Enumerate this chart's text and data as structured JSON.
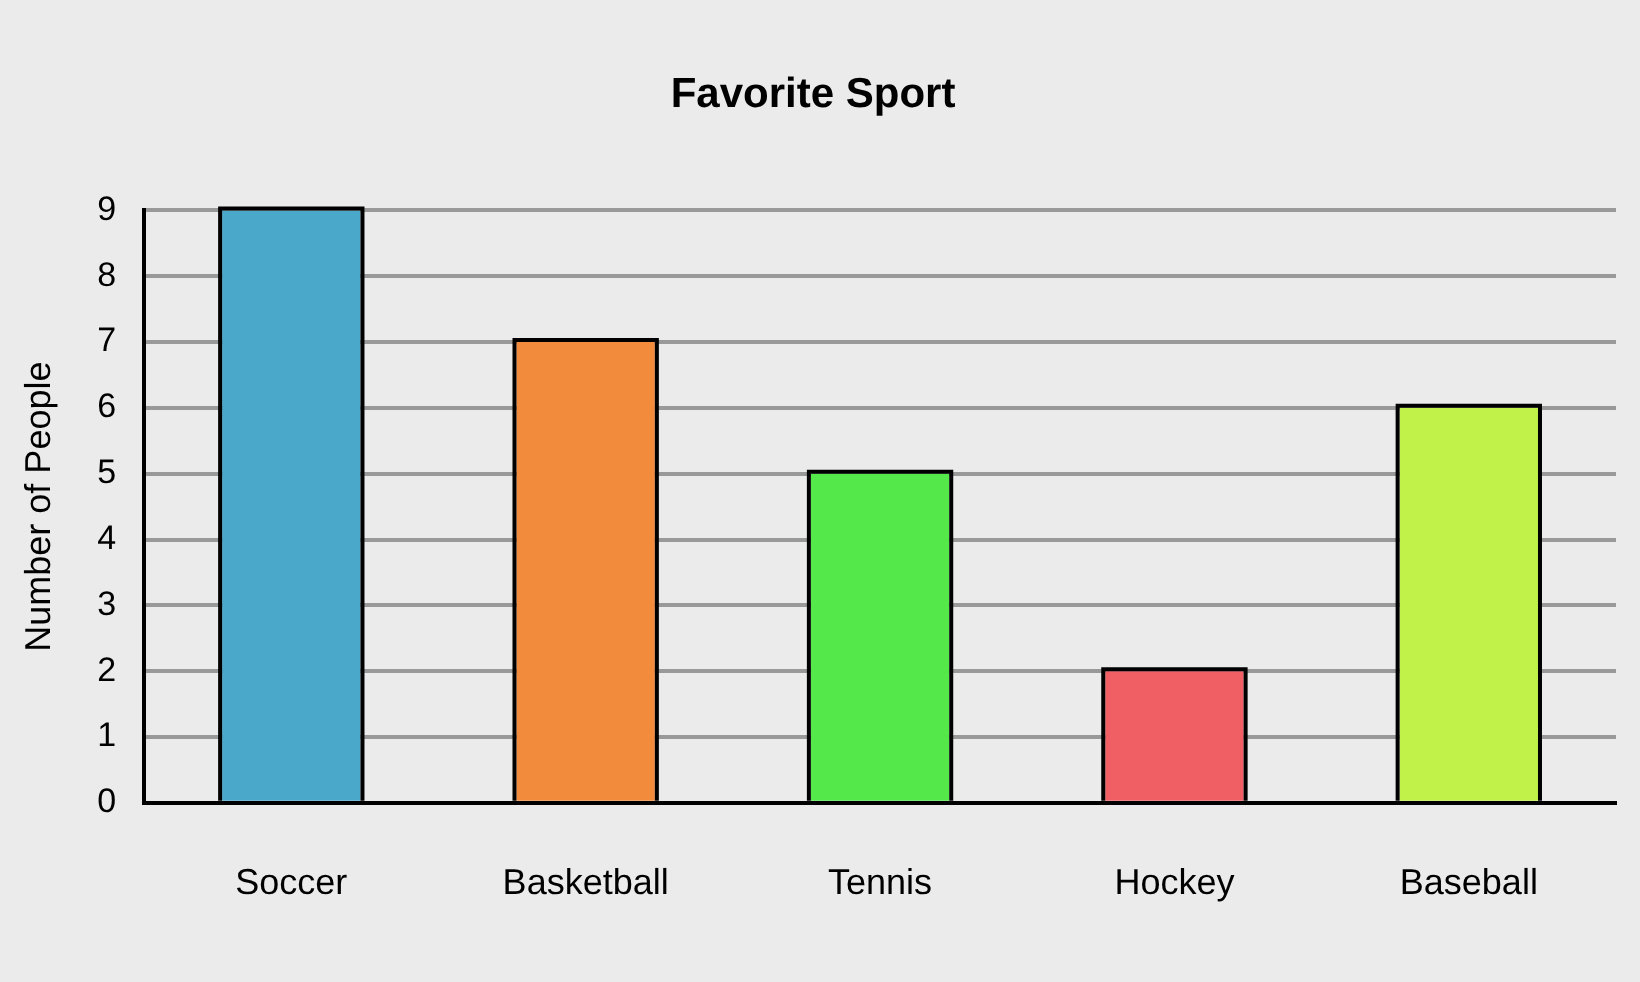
{
  "chart_data": {
    "type": "bar",
    "title": "Favorite Sport",
    "ylabel": "Number of People",
    "categories": [
      "Soccer",
      "Basketball",
      "Tennis",
      "Hockey",
      "Baseball"
    ],
    "values": [
      9,
      7,
      5,
      2,
      6
    ],
    "colors": [
      "#4aa8cb",
      "#f28c3c",
      "#55e84b",
      "#f05f63",
      "#c0f24a"
    ],
    "ylim": [
      0,
      9
    ],
    "yticks": [
      0,
      1,
      2,
      3,
      4,
      5,
      6,
      7,
      8,
      9
    ],
    "grid": "y"
  }
}
